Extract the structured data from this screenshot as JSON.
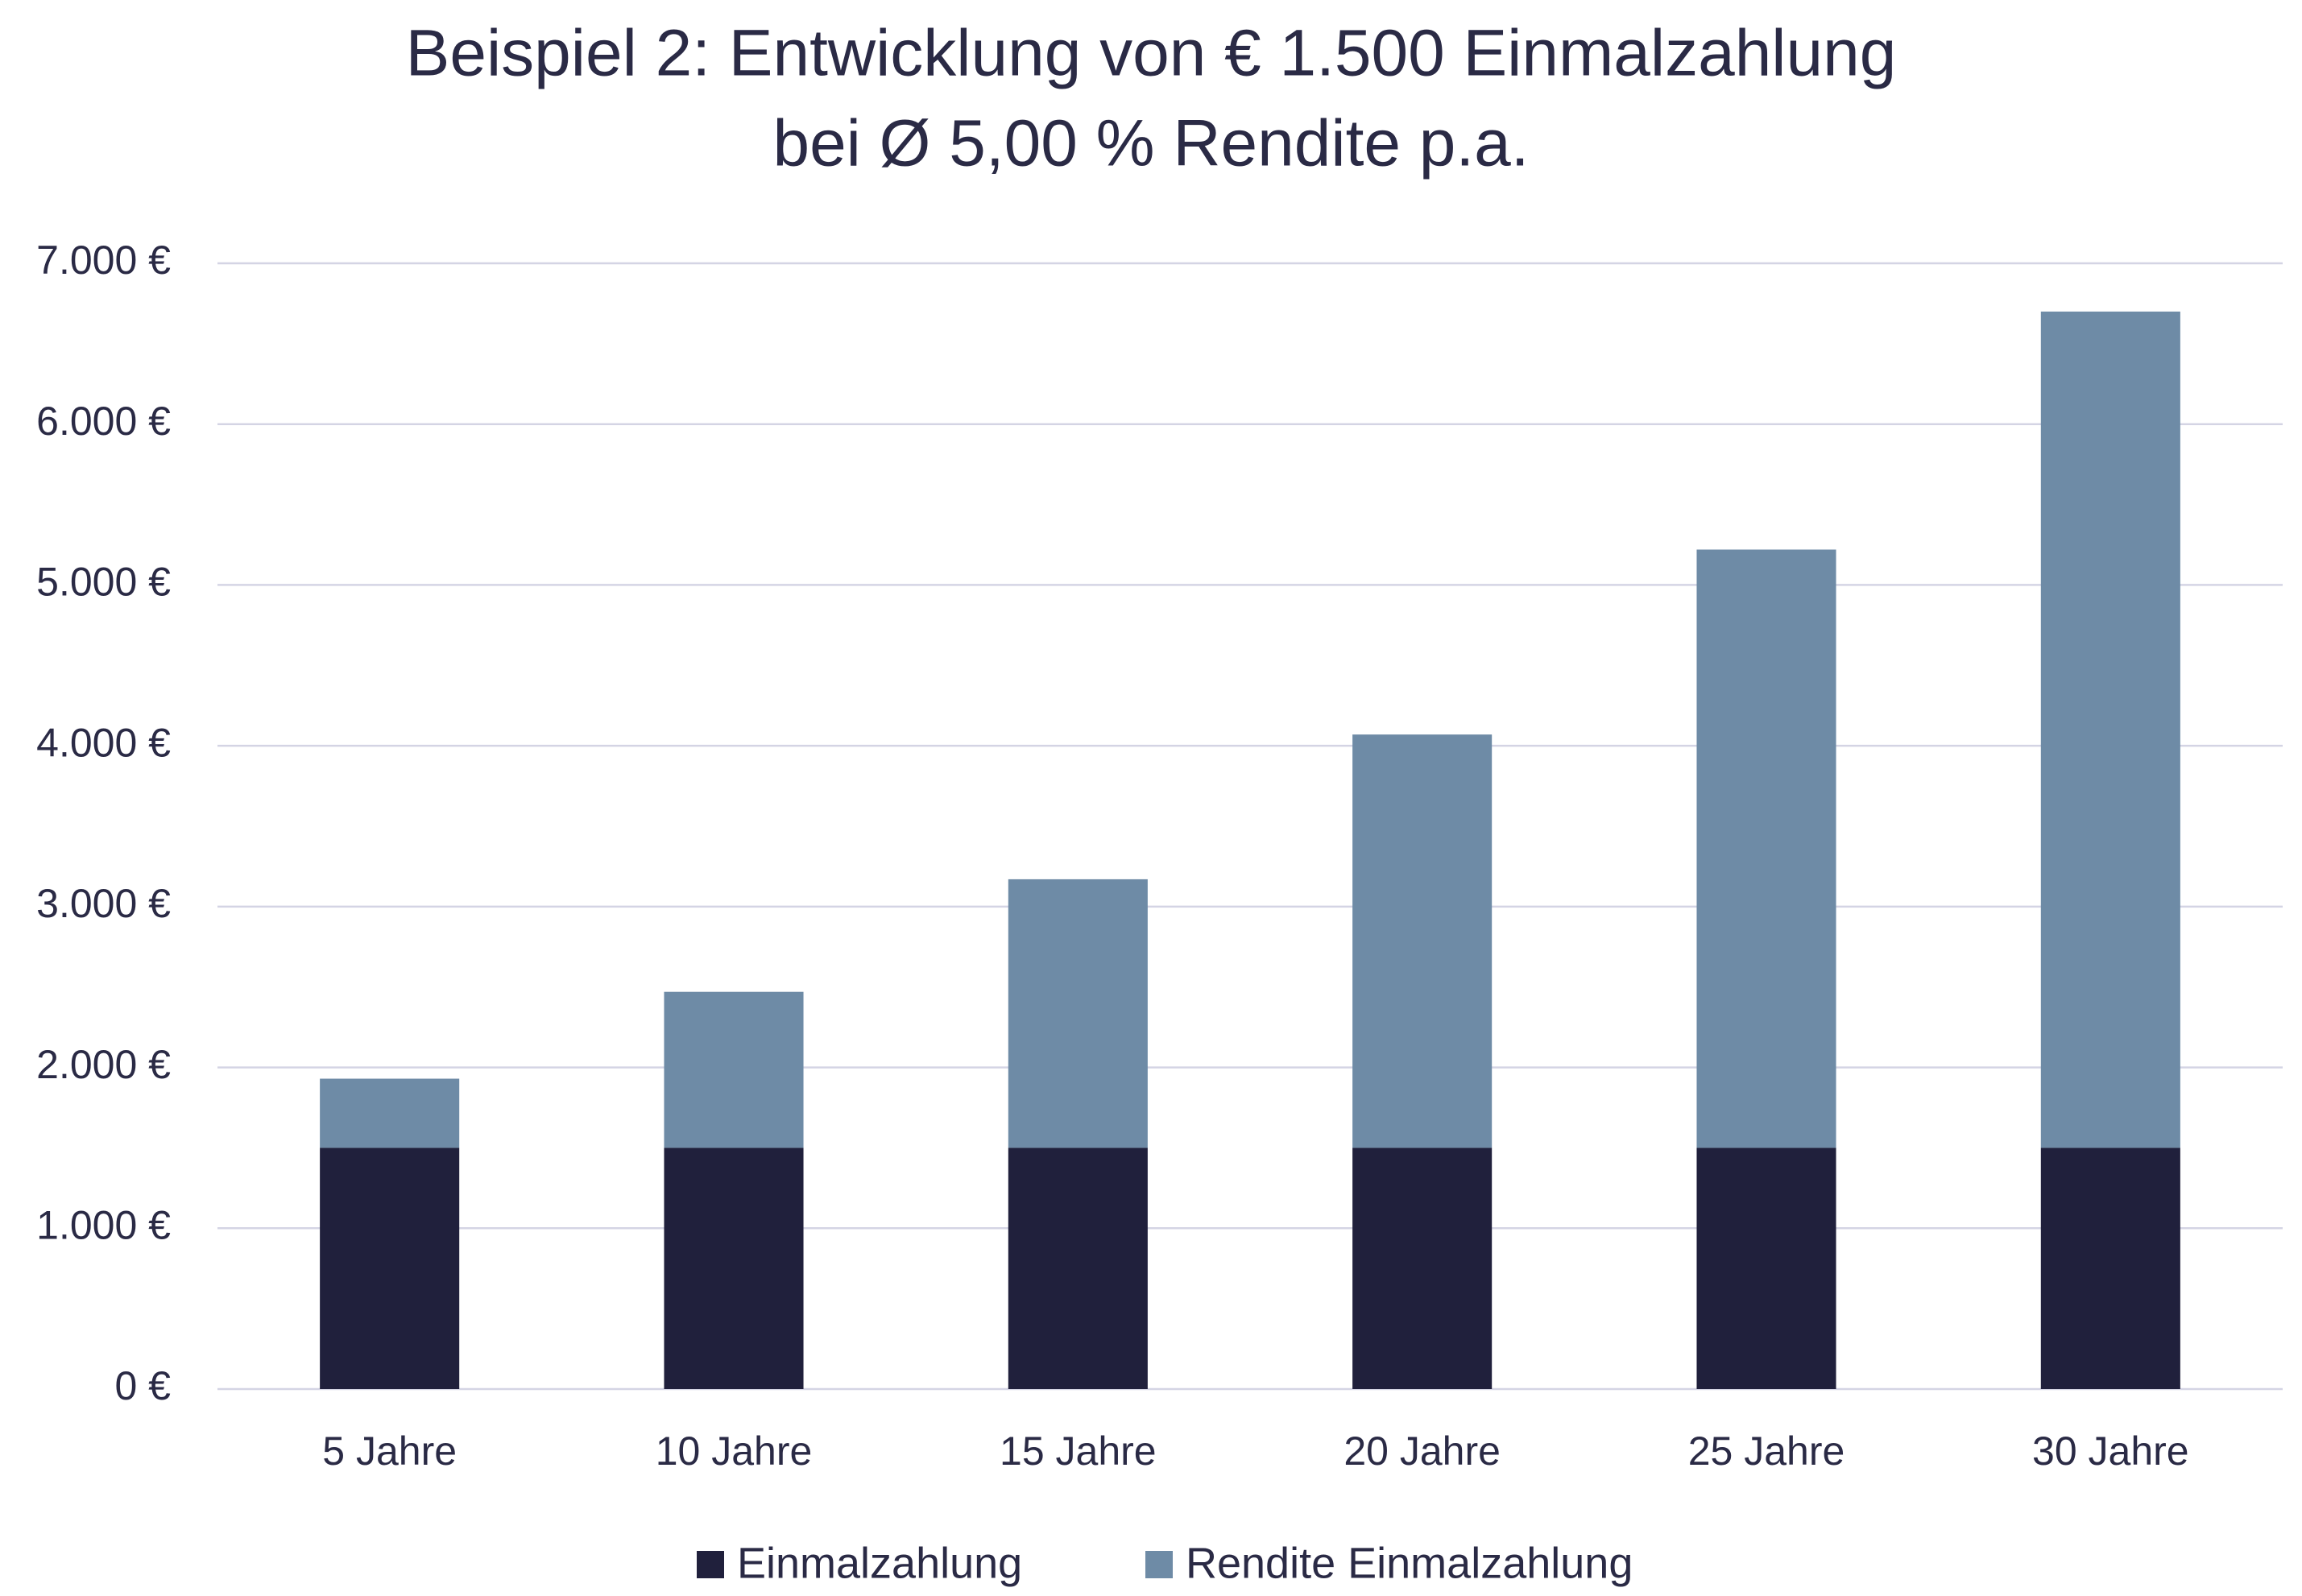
{
  "chart_data": {
    "type": "stacked-bar",
    "title": [
      "Beispiel 2: Entwicklung von € 1.500 Einmalzahlung",
      "bei Ø 5,00 % Rendite p.a."
    ],
    "categories": [
      "5 Jahre",
      "10 Jahre",
      "15 Jahre",
      "20 Jahre",
      "25 Jahre",
      "30 Jahre"
    ],
    "series": [
      {
        "name": "Einmalzahlung",
        "color": "#20203c",
        "values": [
          1500,
          1500,
          1500,
          1500,
          1500,
          1500
        ]
      },
      {
        "name": "Rendite Einmalzahlung",
        "color": "#6e8ba6",
        "values": [
          430,
          970,
          1670,
          2570,
          3720,
          5200
        ]
      }
    ],
    "ylim": [
      0,
      7000
    ],
    "yticks": [
      {
        "value": 0,
        "label": "0 €"
      },
      {
        "value": 1000,
        "label": "1.000 €"
      },
      {
        "value": 2000,
        "label": "2.000 €"
      },
      {
        "value": 3000,
        "label": "3.000 €"
      },
      {
        "value": 4000,
        "label": "4.000 €"
      },
      {
        "value": 5000,
        "label": "5.000 €"
      },
      {
        "value": 6000,
        "label": "6.000 €"
      },
      {
        "value": 7000,
        "label": "7.000 €"
      }
    ],
    "grid": true,
    "legend": "bottom"
  }
}
